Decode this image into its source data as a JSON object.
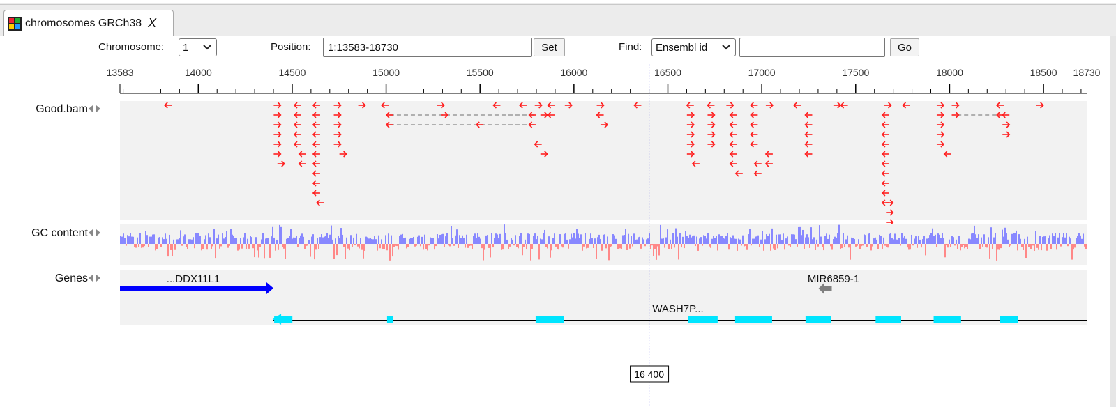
{
  "tab": {
    "title": "chromosomes GRCh38",
    "close_label": "X",
    "icon": "genome-browser-icon"
  },
  "controls": {
    "chromosome_label": "Chromosome:",
    "chromosome_value": "1",
    "position_label": "Position:",
    "position_value": "1:13583-18730",
    "set_label": "Set",
    "find_label": "Find:",
    "find_type_value": "Ensembl id",
    "find_value": "",
    "go_label": "Go"
  },
  "ruler": {
    "start": 13583,
    "end": 18730,
    "labels": [
      "13583",
      "14000",
      "14500",
      "15000",
      "15500",
      "16000",
      "16500",
      "17000",
      "17500",
      "18000",
      "18500",
      "18730"
    ],
    "label_values": [
      13583,
      14000,
      14500,
      15000,
      15500,
      16000,
      16500,
      17000,
      17500,
      18000,
      18500,
      18730
    ]
  },
  "tracks": [
    {
      "name": "Good.bam",
      "type": "reads"
    },
    {
      "name": "GC content",
      "type": "gc"
    },
    {
      "name": "Genes",
      "type": "genes"
    }
  ],
  "cursor": {
    "position": 16400,
    "label": "16 400"
  },
  "genes": [
    {
      "name": "...DDX11L1",
      "start": 13583,
      "end": 14400,
      "strand": "+",
      "color": "#0000ff"
    },
    {
      "name": "MIR6859-1",
      "start": 17369,
      "end": 17436,
      "strand": "-",
      "color": "#808080"
    },
    {
      "name": "WASH7P...",
      "start": 14404,
      "end": 18730,
      "strand": "-",
      "color": "#00e5ff",
      "exons": [
        [
          14404,
          14501
        ],
        [
          15005,
          15038
        ],
        [
          15796,
          15947
        ],
        [
          16607,
          16765
        ],
        [
          16858,
          17055
        ],
        [
          17233,
          17368
        ],
        [
          17606,
          17742
        ],
        [
          17915,
          18061
        ],
        [
          18268,
          18366
        ]
      ]
    }
  ],
  "reads": [
    {
      "s": 14,
      "p": 13840,
      "st": -1
    },
    {
      "s": 14,
      "p": 14420,
      "st": 1
    },
    {
      "s": 14,
      "p": 14530,
      "st": -1
    },
    {
      "s": 14,
      "p": 14630,
      "st": -1
    },
    {
      "s": 14,
      "p": 14740,
      "st": 1
    },
    {
      "s": 14,
      "p": 14870,
      "st": 1
    },
    {
      "s": 14,
      "p": 14995,
      "st": -1
    },
    {
      "s": 14,
      "p": 15290,
      "st": 1
    },
    {
      "s": 14,
      "p": 15590,
      "st": -1
    },
    {
      "s": 14,
      "p": 15730,
      "st": -1
    },
    {
      "s": 14,
      "p": 15810,
      "st": 1
    },
    {
      "s": 14,
      "p": 15880,
      "st": -1
    },
    {
      "s": 14,
      "p": 15970,
      "st": 1
    },
    {
      "s": 14,
      "p": 16140,
      "st": 1
    },
    {
      "s": 14,
      "p": 16340,
      "st": -1
    },
    {
      "s": 14,
      "p": 16620,
      "st": -1
    },
    {
      "s": 14,
      "p": 16730,
      "st": -1
    },
    {
      "s": 14,
      "p": 16830,
      "st": 1
    },
    {
      "s": 14,
      "p": 16960,
      "st": -1
    },
    {
      "s": 14,
      "p": 17040,
      "st": 1
    },
    {
      "s": 14,
      "p": 17190,
      "st": -1
    },
    {
      "s": 14,
      "p": 17400,
      "st": 1
    },
    {
      "s": 14,
      "p": 17440,
      "st": -1
    },
    {
      "s": 14,
      "p": 17670,
      "st": 1
    },
    {
      "s": 14,
      "p": 17770,
      "st": -1
    },
    {
      "s": 14,
      "p": 17950,
      "st": 1
    },
    {
      "s": 14,
      "p": 18030,
      "st": 1
    },
    {
      "s": 14,
      "p": 18270,
      "st": -1
    },
    {
      "s": 14,
      "p": 18480,
      "st": 1
    }
  ],
  "colors": {
    "read": "#ff2020",
    "gc_high": "#8888ff",
    "gc_low": "#ff8888",
    "track_bg": "#f2f2f2",
    "cursor": "#0000cc"
  }
}
